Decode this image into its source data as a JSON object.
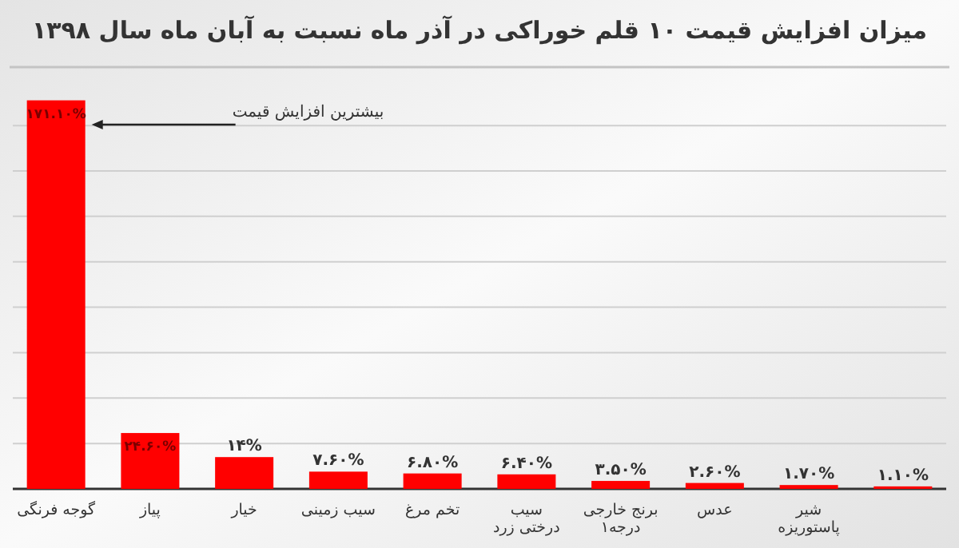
{
  "chart_data": {
    "type": "bar",
    "title": "میزان افزایش قیمت ۱۰ قلم خوراکی در آذر ماه نسبت به آبان ماه سال ۱۳۹۸",
    "categories": [
      "گوجه فرنگی",
      "پیاز",
      "خیار",
      "سیب زمینی",
      "تخم مرغ",
      "سیب درختی زرد",
      "برنج خارجی درجه۱",
      "عدس",
      "شیر پاستوریزه",
      null
    ],
    "values": [
      171.1,
      24.6,
      14,
      7.6,
      6.8,
      6.4,
      3.5,
      2.6,
      1.7,
      1.1
    ],
    "value_labels": [
      "۱۷۱.۱۰%",
      "۲۴.۶۰%",
      "۱۴%",
      "۷.۶۰%",
      "۶.۸۰%",
      "۶.۴۰%",
      "۳.۵۰%",
      "۲.۶۰%",
      "۱.۷۰%",
      "۱.۱۰%"
    ],
    "color": "#ff0000",
    "yticks": [
      {
        "value": 0,
        "label": null
      },
      {
        "value": 20,
        "label": null
      },
      {
        "value": 40,
        "label": null
      },
      {
        "value": 60,
        "label": null
      },
      {
        "value": 80,
        "label": null
      },
      {
        "value": 100,
        "label": null
      },
      {
        "value": 120,
        "label": null
      },
      {
        "value": 140,
        "label": null
      },
      {
        "value": 160,
        "label": null
      }
    ],
    "grid": "y",
    "tick_labels": "x",
    "annotations": [
      "بیشترین افزایش قیمت"
    ]
  }
}
